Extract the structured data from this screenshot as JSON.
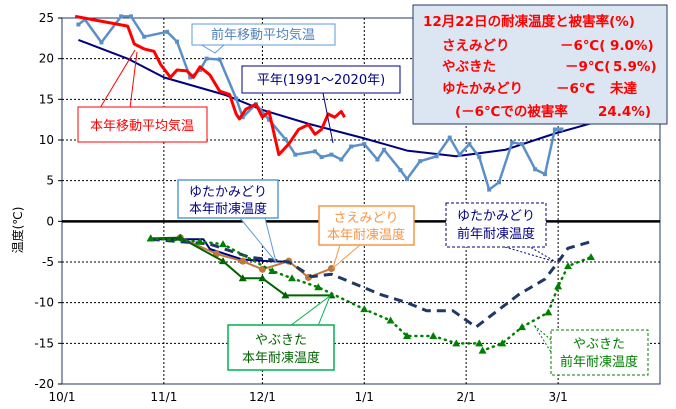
{
  "chart_data": {
    "type": "line",
    "ylabel": "温度(℃)",
    "ylim": [
      -20,
      25
    ],
    "yticks": [
      "25",
      "20",
      "15",
      "10",
      "5",
      "0",
      "-5",
      "-10",
      "-15",
      "-20"
    ],
    "x_unit": "days since 10/1",
    "xlim": [
      0,
      182
    ],
    "xticks": [
      {
        "label": "10/1",
        "day": 0
      },
      {
        "label": "11/1",
        "day": 31
      },
      {
        "label": "12/1",
        "day": 61
      },
      {
        "label": "1/1",
        "day": 92
      },
      {
        "label": "2/1",
        "day": 123
      },
      {
        "label": "3/1",
        "day": 151
      }
    ],
    "grid": true,
    "series": [
      {
        "name": "平年(1991～2020年)",
        "color": "#000080",
        "style": "solid",
        "points": [
          [
            5,
            22.3
          ],
          [
            20,
            20
          ],
          [
            31,
            17.7
          ],
          [
            50,
            15.5
          ],
          [
            61,
            13.7
          ],
          [
            75,
            12
          ],
          [
            92,
            10.2
          ],
          [
            105,
            8.7
          ],
          [
            120,
            8
          ],
          [
            135,
            8.8
          ],
          [
            150,
            10.8
          ],
          [
            165,
            12.5
          ],
          [
            182,
            14.5
          ]
        ]
      },
      {
        "name": "前年移動平均気温",
        "color": "#5b8fc9",
        "style": "marker",
        "points": [
          [
            5,
            24.2
          ],
          [
            7,
            24.8
          ],
          [
            12,
            22
          ],
          [
            18,
            25.2
          ],
          [
            21,
            25.2
          ],
          [
            25,
            22.7
          ],
          [
            32,
            23.3
          ],
          [
            35,
            22.1
          ],
          [
            39,
            17.7
          ],
          [
            42,
            18.6
          ],
          [
            44,
            20
          ],
          [
            48,
            19.9
          ],
          [
            53,
            15.1
          ],
          [
            55,
            12.8
          ],
          [
            59,
            14.4
          ],
          [
            63,
            12.5
          ],
          [
            68,
            10.1
          ],
          [
            71,
            8.2
          ],
          [
            77,
            8.6
          ],
          [
            79,
            7.9
          ],
          [
            82,
            8.2
          ],
          [
            85,
            7.6
          ],
          [
            88,
            9.2
          ],
          [
            92,
            9.5
          ],
          [
            96,
            7.6
          ],
          [
            98,
            8.8
          ],
          [
            103,
            6.3
          ],
          [
            105,
            5.2
          ],
          [
            109,
            7.4
          ],
          [
            114,
            8
          ],
          [
            118,
            10.3
          ],
          [
            121,
            8.2
          ],
          [
            124,
            9.5
          ],
          [
            127,
            7.9
          ],
          [
            130,
            3.9
          ],
          [
            133,
            4.8
          ],
          [
            137,
            9.7
          ],
          [
            140,
            9.5
          ],
          [
            144,
            6.4
          ],
          [
            147,
            5.8
          ],
          [
            150,
            11.3
          ],
          [
            152,
            11.3
          ]
        ]
      },
      {
        "name": "本年移動平均気温",
        "color": "#ff0000",
        "style": "solid",
        "points": [
          [
            4,
            25.2
          ],
          [
            20,
            24
          ],
          [
            22,
            21.8
          ],
          [
            25,
            21.2
          ],
          [
            28,
            20.9
          ],
          [
            30,
            19.3
          ],
          [
            33,
            17.7
          ],
          [
            35,
            18.6
          ],
          [
            38,
            18.5
          ],
          [
            40,
            17.7
          ],
          [
            42,
            19
          ],
          [
            45,
            18
          ],
          [
            48,
            16
          ],
          [
            51,
            15.6
          ],
          [
            53,
            13.2
          ],
          [
            54,
            12.6
          ],
          [
            56,
            13.8
          ],
          [
            59,
            14.4
          ],
          [
            61,
            12.8
          ],
          [
            63,
            13.5
          ],
          [
            66,
            8.2
          ],
          [
            69,
            9.5
          ],
          [
            72,
            11.3
          ],
          [
            75,
            11.9
          ],
          [
            77,
            10.7
          ],
          [
            79,
            11.3
          ],
          [
            81,
            13.2
          ],
          [
            83,
            12.8
          ],
          [
            85,
            13.5
          ],
          [
            86,
            12.8
          ]
        ]
      },
      {
        "name": "ゆたかみどり 本年耐凍温度",
        "color": "#000080",
        "style": "solid",
        "points": [
          [
            27,
            -2.2
          ],
          [
            43,
            -2.2
          ],
          [
            45,
            -3.4
          ],
          [
            55,
            -4.7
          ],
          [
            63,
            -4.9
          ],
          [
            70,
            -5
          ]
        ]
      },
      {
        "name": "さえみどり 本年耐凍温度",
        "color": "#c0773a",
        "style": "circle",
        "points": [
          [
            36,
            -2
          ],
          [
            47,
            -4
          ],
          [
            55,
            -4.9
          ],
          [
            61,
            -5.9
          ],
          [
            69,
            -4.9
          ],
          [
            75,
            -6.9
          ],
          [
            82,
            -5.8
          ]
        ]
      },
      {
        "name": "やぶきた 本年耐凍温度",
        "color": "#006400",
        "style": "triangle",
        "points": [
          [
            27,
            -2.1
          ],
          [
            36,
            -2
          ],
          [
            49,
            -4.9
          ],
          [
            55,
            -7
          ],
          [
            61,
            -7
          ],
          [
            68,
            -9.1
          ],
          [
            82,
            -9.1
          ]
        ]
      },
      {
        "name": "ゆたかみどり 前年耐凍温度",
        "color": "#1f3864",
        "style": "dash",
        "points": [
          [
            27,
            -2.2
          ],
          [
            45,
            -2.8
          ],
          [
            57,
            -4.4
          ],
          [
            69,
            -5
          ],
          [
            76,
            -6.8
          ],
          [
            82,
            -6.5
          ],
          [
            97,
            -9
          ],
          [
            105,
            -10
          ],
          [
            111,
            -11
          ],
          [
            119,
            -11
          ],
          [
            126,
            -13
          ],
          [
            139,
            -9
          ],
          [
            147,
            -7.1
          ],
          [
            151,
            -5
          ],
          [
            154,
            -3.3
          ],
          [
            161,
            -2.5
          ]
        ]
      },
      {
        "name": "やぶきた 前年耐凍温度",
        "color": "#008000",
        "style": "dot",
        "points": [
          [
            27,
            -2.1
          ],
          [
            42,
            -2.5
          ],
          [
            49,
            -2.8
          ],
          [
            64,
            -6.1
          ],
          [
            70,
            -7
          ],
          [
            78,
            -8.1
          ],
          [
            92,
            -10.8
          ],
          [
            100,
            -12.2
          ],
          [
            105,
            -14.1
          ],
          [
            113,
            -14.1
          ],
          [
            120,
            -15
          ],
          [
            127,
            -15
          ],
          [
            128,
            -15.9
          ],
          [
            134,
            -15
          ],
          [
            140,
            -13
          ],
          [
            148,
            -11.2
          ],
          [
            151,
            -8
          ],
          [
            154,
            -5.5
          ],
          [
            161,
            -4.4
          ]
        ]
      }
    ]
  },
  "callouts": {
    "prev_avg": "前年移動平均気温",
    "normal": "平年(1991～2020年)",
    "curr_avg": "本年移動平均気温",
    "yutaka_curr": [
      "ゆたかみどり",
      "本年耐凍温度"
    ],
    "sae_curr": [
      "さえみどり",
      "本年耐凍温度"
    ],
    "yabu_curr": [
      "やぶきた",
      "本年耐凍温度"
    ],
    "yutaka_prev": [
      "ゆたかみどり",
      "前年耐凍温度"
    ],
    "yabu_prev": [
      "やぶきた",
      "前年耐凍温度"
    ]
  },
  "info_box": {
    "title": "12月22日の耐凍温度と被害率(%)",
    "rows": [
      {
        "name": "さえみどり",
        "temp": "－6℃(",
        "value": "9.0%)"
      },
      {
        "name": "やぶきた",
        "temp": "－9℃(",
        "value": "5.9%)"
      },
      {
        "name": "ゆたかみどり",
        "temp": "－6℃",
        "value": "未達"
      }
    ],
    "note_prefix": "(－6℃での被害率",
    "note_value": "24.4%)"
  }
}
